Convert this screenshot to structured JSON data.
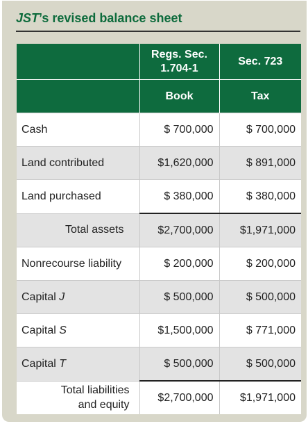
{
  "title": {
    "prefix_italic": "JST",
    "rest": "’s revised balance sheet"
  },
  "colors": {
    "panel_bg": "#d8d7c9",
    "header_green": "#0e6b3e",
    "title_green": "#0d6b3c",
    "shade_row": "#e3e3e3"
  },
  "table": {
    "columns": {
      "col2_header_line1": "Regs. Sec.",
      "col2_header_line2": "1.704-1",
      "col3_header": "Sec. 723",
      "col2_subheader": "Book",
      "col3_subheader": "Tax"
    },
    "rows": [
      {
        "label": "Cash",
        "book": "$ 700,000",
        "tax": "$ 700,000"
      },
      {
        "label": "Land contributed",
        "book": "$1,620,000",
        "tax": "$ 891,000"
      },
      {
        "label": "Land purchased",
        "book": "$ 380,000",
        "tax": "$ 380,000"
      },
      {
        "label": "Total assets",
        "book": "$2,700,000",
        "tax": "$1,971,000"
      },
      {
        "label": "Nonrecourse liability",
        "book": "$ 200,000",
        "tax": "$ 200,000"
      },
      {
        "label_prefix": "Capital ",
        "label_italic": "J",
        "book": "$ 500,000",
        "tax": "$ 500,000"
      },
      {
        "label_prefix": "Capital ",
        "label_italic": "S",
        "book": "$1,500,000",
        "tax": "$ 771,000"
      },
      {
        "label_prefix": "Capital ",
        "label_italic": "T",
        "book": "$ 500,000",
        "tax": "$ 500,000"
      },
      {
        "label_line1": "Total liabilities",
        "label_line2": "and equity",
        "book": "$2,700,000",
        "tax": "$1,971,000"
      }
    ]
  }
}
